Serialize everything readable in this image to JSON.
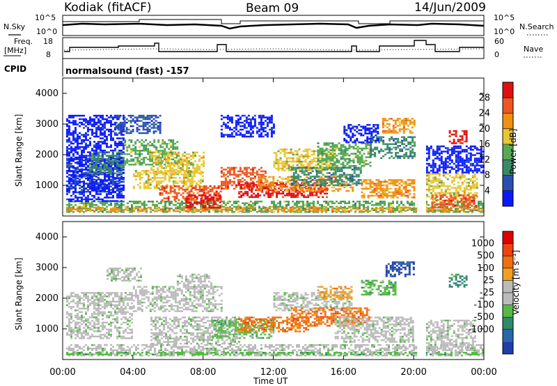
{
  "header": {
    "station": "Kodiak (fitACF)",
    "beam": "Beam 09",
    "date": "14/Jun/2009"
  },
  "strips": {
    "nsky_label": "N.Sky",
    "nsky_ticks": [
      "10^5",
      "10^0"
    ],
    "nsearch_label": "N.Search",
    "nsearch_ticks": [
      "10^5",
      "10^0"
    ],
    "freq_label_1": "Freq.",
    "freq_label_2": "[MHz]",
    "freq_ticks": [
      "18",
      "8"
    ],
    "nave_label": "Nave",
    "nave_ticks": [
      "60",
      "0"
    ],
    "cpid_label": "CPID",
    "cpid_text": "normalsound (fast) -157"
  },
  "colors": {
    "power_scale": [
      "#0a1aff",
      "#2a4fb0",
      "#3a8a6a",
      "#55aa55",
      "#e8c832",
      "#f09010",
      "#ee5522",
      "#e01010"
    ],
    "velocity_scale": [
      "#1f3ea8",
      "#2a66aa",
      "#2f8a6a",
      "#55bb44",
      "#bbbbbb",
      "#bbbbbb",
      "#f0a020",
      "#f07010",
      "#ee4410",
      "#e00000"
    ]
  },
  "chart_data": [
    {
      "type": "heatmap",
      "name": "power-panel",
      "ylabel": "Slant Range [km]",
      "yticks": [
        "1000",
        "2000",
        "3000",
        "4000"
      ],
      "colorbar_label": "Power [dB]",
      "colorbar_ticks": [
        "4",
        "8",
        "12",
        "16",
        "20",
        "24",
        "28"
      ]
    },
    {
      "type": "heatmap",
      "name": "velocity-panel",
      "ylabel": "Slant Range [km]",
      "yticks": [
        "1000",
        "2000",
        "3000",
        "4000"
      ],
      "colorbar_label": "Velocity [m s⁻¹]",
      "colorbar_ticks": [
        "1000",
        "500",
        "100",
        "25",
        "-25",
        "-100",
        "-500",
        "-1000"
      ]
    }
  ],
  "xaxis": {
    "label": "Time UT",
    "ticks": [
      "00:00",
      "04:00",
      "08:00",
      "12:00",
      "16:00",
      "20:00",
      "00:00"
    ]
  }
}
